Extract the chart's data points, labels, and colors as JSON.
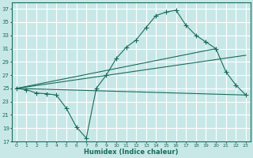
{
  "xlabel": "Humidex (Indice chaleur)",
  "bg_color": "#c8e8e8",
  "grid_color": "#ffffff",
  "line_color": "#1a6b5a",
  "xlim": [
    -0.5,
    23.5
  ],
  "ylim": [
    17,
    38
  ],
  "yticks": [
    17,
    19,
    21,
    23,
    25,
    27,
    29,
    31,
    33,
    35,
    37
  ],
  "xticks": [
    0,
    1,
    2,
    3,
    4,
    5,
    6,
    7,
    8,
    9,
    10,
    11,
    12,
    13,
    14,
    15,
    16,
    17,
    18,
    19,
    20,
    21,
    22,
    23
  ],
  "series1_x": [
    0,
    1,
    2,
    3,
    4,
    5,
    6,
    7,
    8,
    9,
    10,
    11,
    12,
    13,
    14,
    15,
    16,
    17,
    18,
    19,
    20,
    21,
    22,
    23
  ],
  "series1_y": [
    25,
    24.8,
    24.3,
    24.2,
    24.0,
    22.0,
    19.2,
    17.5,
    25.0,
    27.0,
    29.5,
    31.2,
    32.3,
    34.2,
    36.0,
    36.5,
    36.8,
    34.5,
    33.0,
    32.0,
    31.0,
    27.5,
    25.5,
    24.0
  ],
  "line2_x": [
    0,
    23
  ],
  "line2_y": [
    25,
    24.0
  ],
  "line3_x": [
    0,
    20
  ],
  "line3_y": [
    25,
    31.0
  ],
  "line4_x": [
    0,
    23
  ],
  "line4_y": [
    25,
    30.0
  ]
}
